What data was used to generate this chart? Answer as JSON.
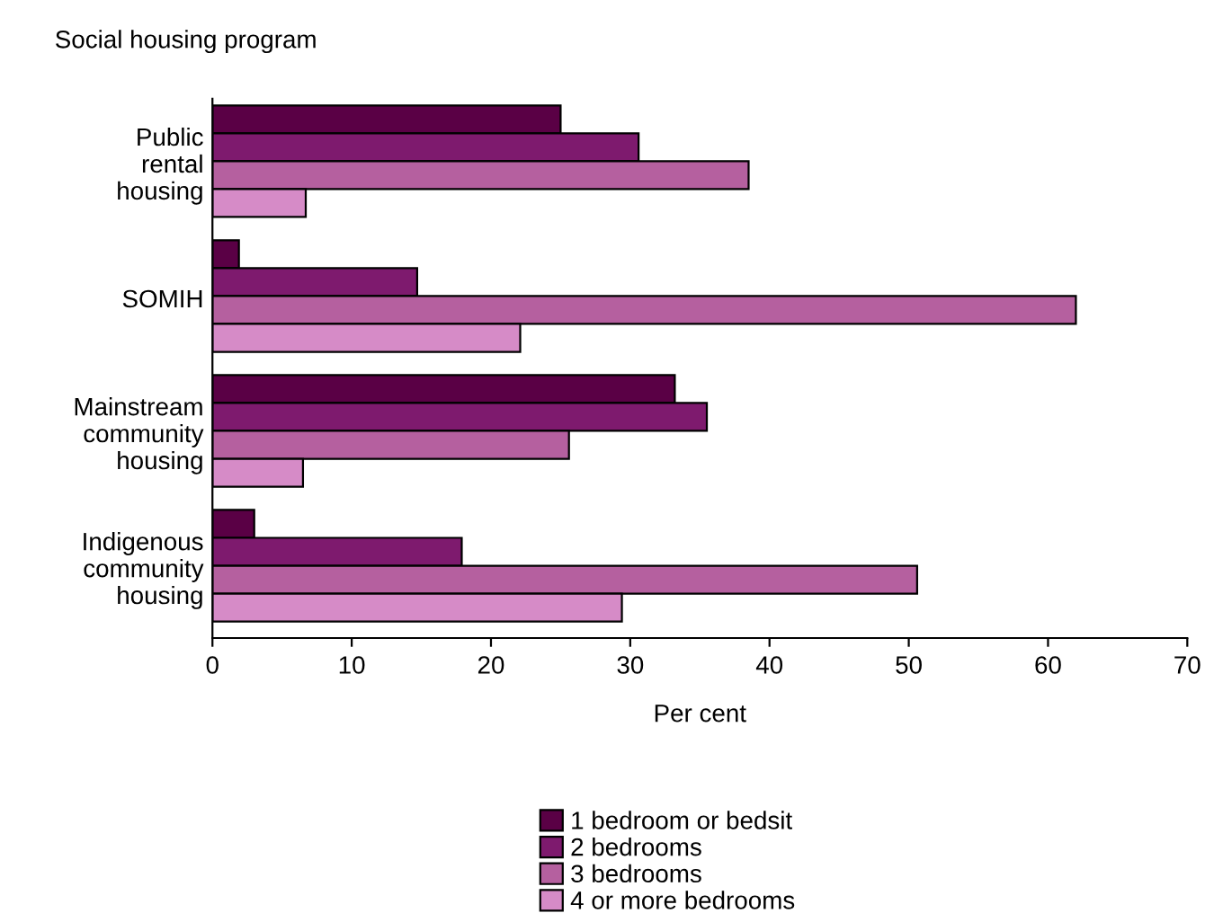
{
  "chart_data": {
    "type": "bar",
    "orientation": "horizontal",
    "ylabel": "Social housing program",
    "xlabel": "Per cent",
    "categories": [
      "Public\nrental\nhousing",
      "SOMIH",
      "Mainstream\ncommunity\nhousing",
      "Indigenous\ncommunity\nhousing"
    ],
    "series": [
      {
        "name": "1 bedroom or bedsit",
        "color": "#5a0045",
        "values": [
          25.0,
          1.9,
          33.2,
          3.0
        ]
      },
      {
        "name": "2 bedrooms",
        "color": "#7e1a6e",
        "values": [
          30.6,
          14.7,
          35.5,
          17.9
        ]
      },
      {
        "name": "3 bedrooms",
        "color": "#b5609f",
        "values": [
          38.5,
          62.0,
          25.6,
          50.6
        ]
      },
      {
        "name": "4 or more bedrooms",
        "color": "#d68bc7",
        "values": [
          6.7,
          22.1,
          6.5,
          29.4
        ]
      }
    ],
    "xlim": [
      0,
      70
    ],
    "xticks": [
      0,
      10,
      20,
      30,
      40,
      50,
      60,
      70
    ],
    "grid": false,
    "legend": "bottom"
  }
}
